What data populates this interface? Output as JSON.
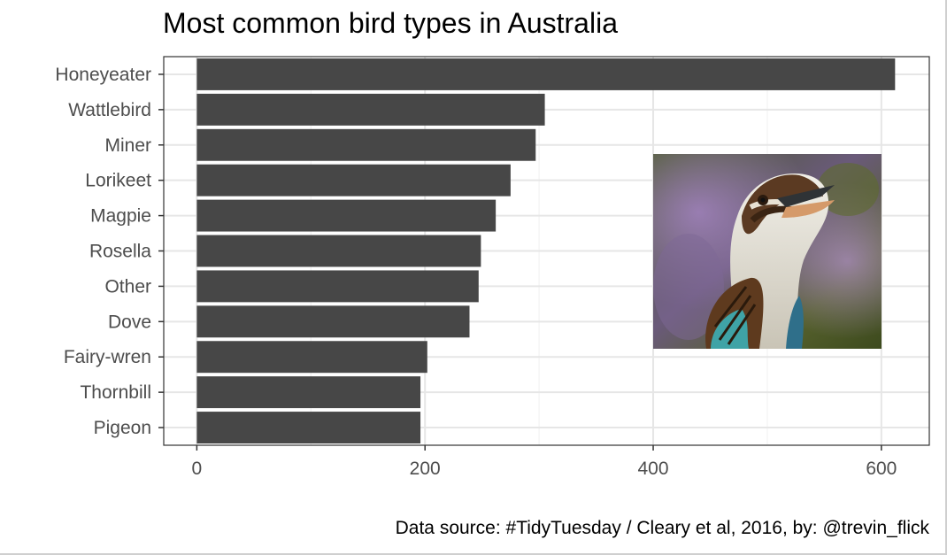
{
  "chart_data": {
    "type": "bar",
    "orientation": "horizontal",
    "title": "Most common bird types in Australia",
    "caption": "Data source: #TidyTuesday / Cleary et al, 2016, by: @trevin_flick",
    "xlabel": "",
    "ylabel": "",
    "categories": [
      "Honeyeater",
      "Wattlebird",
      "Miner",
      "Lorikeet",
      "Magpie",
      "Rosella",
      "Other",
      "Dove",
      "Fairy-wren",
      "Thornbill",
      "Pigeon"
    ],
    "values": [
      612,
      305,
      297,
      275,
      262,
      249,
      247,
      239,
      202,
      196,
      196
    ],
    "xlim": [
      -29,
      642
    ],
    "xticks": [
      0,
      200,
      400,
      600
    ],
    "bar_color": "#474747",
    "grid": true,
    "legend": "none",
    "inset_image": "kookaburra-photo"
  }
}
